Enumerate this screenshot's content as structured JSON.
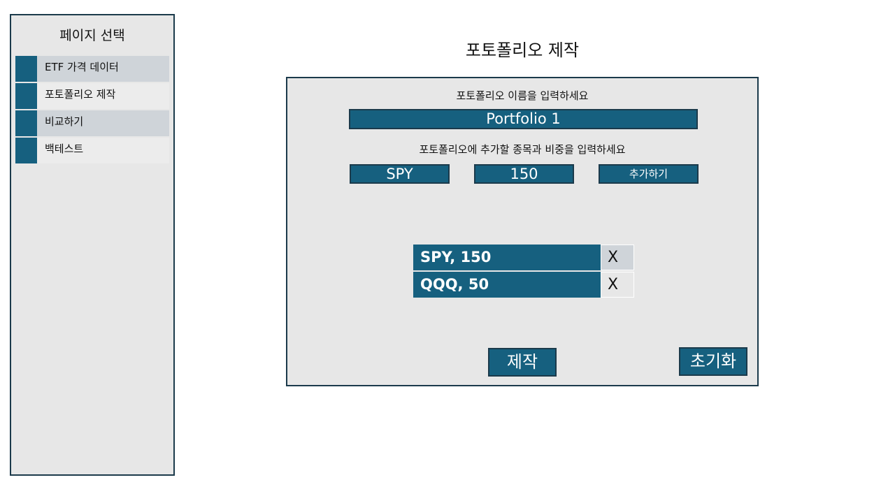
{
  "sidebar": {
    "title": "페이지 선택",
    "items": [
      {
        "label": "ETF 가격 데이터"
      },
      {
        "label": "포토폴리오 제작"
      },
      {
        "label": "비교하기"
      },
      {
        "label": "백테스트"
      }
    ]
  },
  "main": {
    "title": "포토폴리오 제작",
    "name_prompt": "포토폴리오 이름을 입력하세요",
    "name_value": "Portfolio 1",
    "holding_prompt": "포토폴리오에 추가할 종목과 비중을 입력하세요",
    "ticker_value": "SPY",
    "weight_value": "150",
    "add_label": "추가하기",
    "holdings": [
      {
        "label": "SPY, 150",
        "remove": "X"
      },
      {
        "label": "QQQ, 50",
        "remove": "X"
      }
    ],
    "create_label": "제작",
    "reset_label": "초기화"
  },
  "colors": {
    "accent": "#16607f",
    "border": "#1b3a4b",
    "panel": "#e7e7e7",
    "highlight": "#cfd4d9"
  }
}
